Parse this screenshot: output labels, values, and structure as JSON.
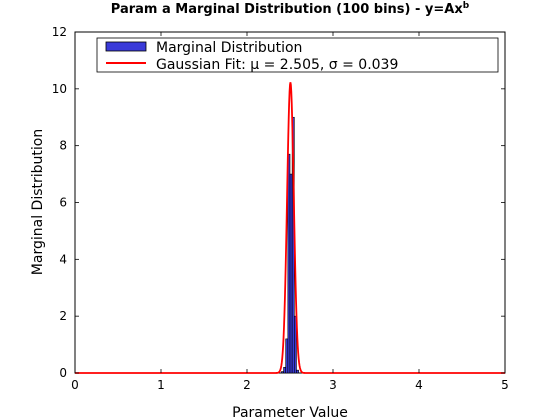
{
  "chart_data": {
    "type": "bar",
    "title": "Param a Marginal Distribution (100 bins) - y=Ax",
    "title_superscript": "b",
    "xlabel": "Parameter Value",
    "ylabel": "Marginal Distribution",
    "xlim": [
      0,
      5
    ],
    "ylim": [
      0,
      12
    ],
    "xticks": [
      "0",
      "1",
      "2",
      "3",
      "4",
      "5"
    ],
    "yticks": [
      "0",
      "2",
      "4",
      "6",
      "8",
      "10",
      "12"
    ],
    "grid": false,
    "legend": {
      "placement": "top"
    },
    "histogram": {
      "name": "Marginal Distribution",
      "bin_width": 0.025,
      "bins": [
        {
          "x0": 2.4,
          "value": 0.05
        },
        {
          "x0": 2.425,
          "value": 0.2
        },
        {
          "x0": 2.45,
          "value": 1.2
        },
        {
          "x0": 2.475,
          "value": 7.7
        },
        {
          "x0": 2.5,
          "value": 7.0
        },
        {
          "x0": 2.525,
          "value": 9.0
        },
        {
          "x0": 2.55,
          "value": 2.0
        },
        {
          "x0": 2.575,
          "value": 0.1
        }
      ],
      "fill": "#3a3ad8",
      "edge": "#000000"
    },
    "fit": {
      "name": "Gaussian Fit: μ = 2.505, σ  = 0.039",
      "type": "gaussian",
      "mu": 2.505,
      "sigma": 0.039,
      "color": "#ff0000"
    }
  }
}
